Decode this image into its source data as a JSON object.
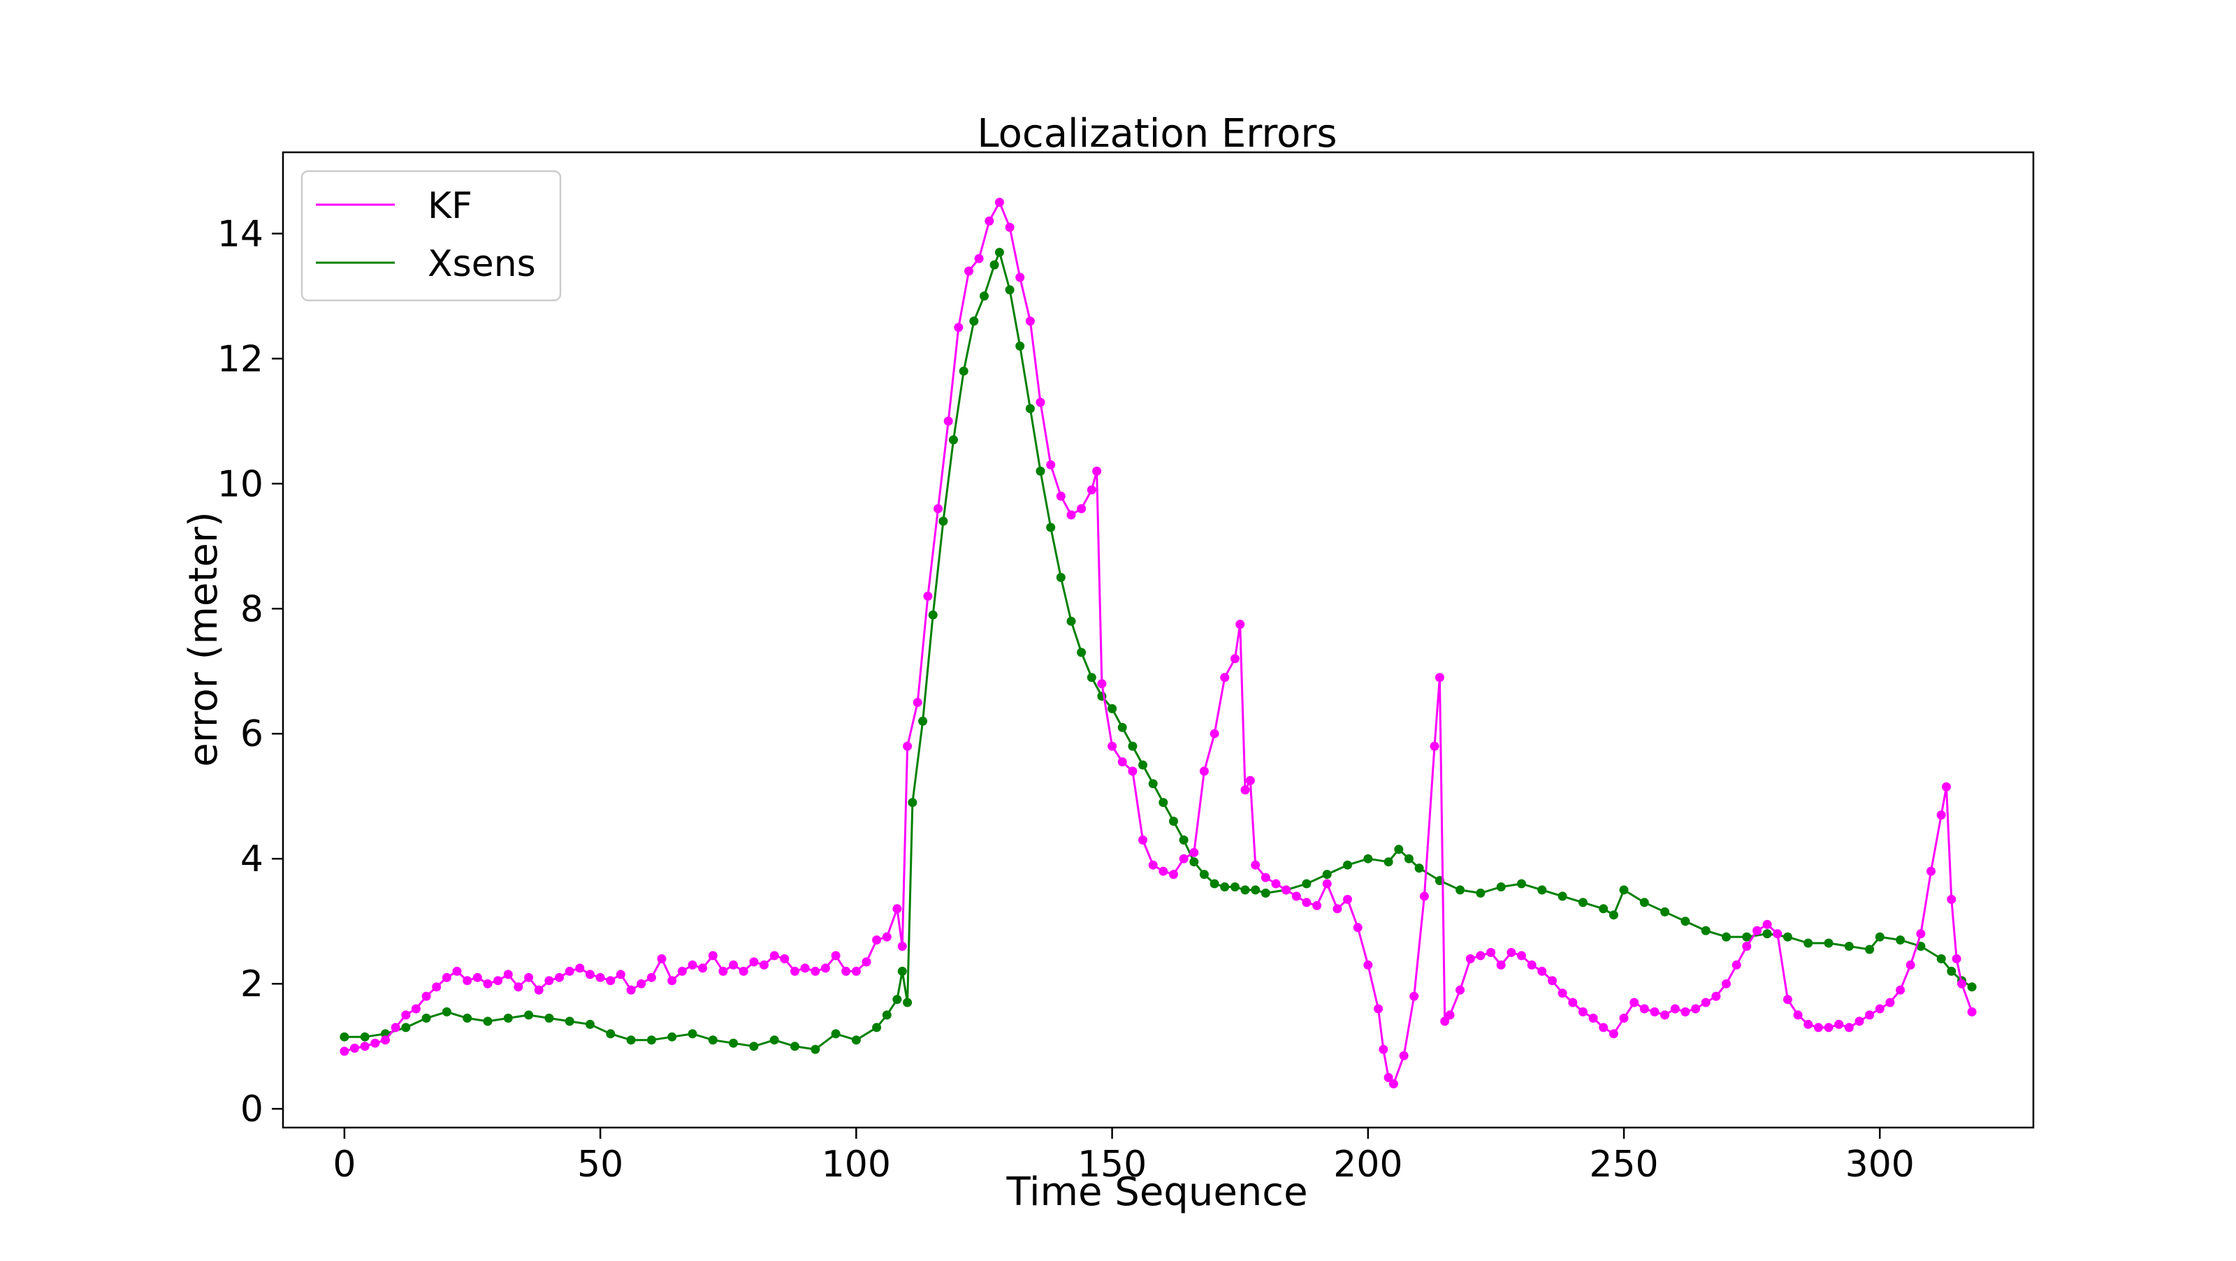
{
  "chart_data": {
    "type": "line",
    "title": "Localization Errors",
    "xlabel": "Time Sequence",
    "ylabel": "error (meter)",
    "xlim": [
      -12,
      330
    ],
    "ylim": [
      -0.3,
      15.3
    ],
    "xticks": [
      0,
      50,
      100,
      150,
      200,
      250,
      300
    ],
    "yticks": [
      0,
      2,
      4,
      6,
      8,
      10,
      12,
      14
    ],
    "grid": false,
    "legend": "top-left",
    "markers": true,
    "series": [
      {
        "name": "KF",
        "color": "#ff00ff",
        "points": [
          [
            0,
            0.92
          ],
          [
            2,
            0.97
          ],
          [
            4,
            1.0
          ],
          [
            6,
            1.05
          ],
          [
            8,
            1.1
          ],
          [
            10,
            1.3
          ],
          [
            12,
            1.5
          ],
          [
            14,
            1.6
          ],
          [
            16,
            1.8
          ],
          [
            18,
            1.95
          ],
          [
            20,
            2.1
          ],
          [
            22,
            2.2
          ],
          [
            24,
            2.05
          ],
          [
            26,
            2.1
          ],
          [
            28,
            2.0
          ],
          [
            30,
            2.05
          ],
          [
            32,
            2.15
          ],
          [
            34,
            1.95
          ],
          [
            36,
            2.1
          ],
          [
            38,
            1.9
          ],
          [
            40,
            2.05
          ],
          [
            42,
            2.1
          ],
          [
            44,
            2.2
          ],
          [
            46,
            2.25
          ],
          [
            48,
            2.15
          ],
          [
            50,
            2.1
          ],
          [
            52,
            2.05
          ],
          [
            54,
            2.15
          ],
          [
            56,
            1.9
          ],
          [
            58,
            2.0
          ],
          [
            60,
            2.1
          ],
          [
            62,
            2.4
          ],
          [
            64,
            2.05
          ],
          [
            66,
            2.2
          ],
          [
            68,
            2.3
          ],
          [
            70,
            2.25
          ],
          [
            72,
            2.45
          ],
          [
            74,
            2.2
          ],
          [
            76,
            2.3
          ],
          [
            78,
            2.2
          ],
          [
            80,
            2.35
          ],
          [
            82,
            2.3
          ],
          [
            84,
            2.45
          ],
          [
            86,
            2.4
          ],
          [
            88,
            2.2
          ],
          [
            90,
            2.25
          ],
          [
            92,
            2.2
          ],
          [
            94,
            2.25
          ],
          [
            96,
            2.45
          ],
          [
            98,
            2.2
          ],
          [
            100,
            2.2
          ],
          [
            102,
            2.35
          ],
          [
            104,
            2.7
          ],
          [
            106,
            2.75
          ],
          [
            108,
            3.2
          ],
          [
            109,
            2.6
          ],
          [
            110,
            5.8
          ],
          [
            112,
            6.5
          ],
          [
            114,
            8.2
          ],
          [
            116,
            9.6
          ],
          [
            118,
            11.0
          ],
          [
            120,
            12.5
          ],
          [
            122,
            13.4
          ],
          [
            124,
            13.6
          ],
          [
            126,
            14.2
          ],
          [
            128,
            14.5
          ],
          [
            130,
            14.1
          ],
          [
            132,
            13.3
          ],
          [
            134,
            12.6
          ],
          [
            136,
            11.3
          ],
          [
            138,
            10.3
          ],
          [
            140,
            9.8
          ],
          [
            142,
            9.5
          ],
          [
            144,
            9.6
          ],
          [
            146,
            9.9
          ],
          [
            147,
            10.2
          ],
          [
            148,
            6.8
          ],
          [
            150,
            5.8
          ],
          [
            152,
            5.55
          ],
          [
            154,
            5.4
          ],
          [
            156,
            4.3
          ],
          [
            158,
            3.9
          ],
          [
            160,
            3.8
          ],
          [
            162,
            3.75
          ],
          [
            164,
            4.0
          ],
          [
            166,
            4.1
          ],
          [
            168,
            5.4
          ],
          [
            170,
            6.0
          ],
          [
            172,
            6.9
          ],
          [
            174,
            7.2
          ],
          [
            175,
            7.75
          ],
          [
            176,
            5.1
          ],
          [
            177,
            5.25
          ],
          [
            178,
            3.9
          ],
          [
            180,
            3.7
          ],
          [
            182,
            3.6
          ],
          [
            184,
            3.5
          ],
          [
            186,
            3.4
          ],
          [
            188,
            3.3
          ],
          [
            190,
            3.25
          ],
          [
            192,
            3.6
          ],
          [
            194,
            3.2
          ],
          [
            196,
            3.35
          ],
          [
            198,
            2.9
          ],
          [
            200,
            2.3
          ],
          [
            202,
            1.6
          ],
          [
            203,
            0.95
          ],
          [
            204,
            0.5
          ],
          [
            205,
            0.4
          ],
          [
            207,
            0.85
          ],
          [
            209,
            1.8
          ],
          [
            211,
            3.4
          ],
          [
            213,
            5.8
          ],
          [
            214,
            6.9
          ],
          [
            215,
            1.4
          ],
          [
            216,
            1.5
          ],
          [
            218,
            1.9
          ],
          [
            220,
            2.4
          ],
          [
            222,
            2.45
          ],
          [
            224,
            2.5
          ],
          [
            226,
            2.3
          ],
          [
            228,
            2.5
          ],
          [
            230,
            2.45
          ],
          [
            232,
            2.3
          ],
          [
            234,
            2.2
          ],
          [
            236,
            2.05
          ],
          [
            238,
            1.85
          ],
          [
            240,
            1.7
          ],
          [
            242,
            1.55
          ],
          [
            244,
            1.45
          ],
          [
            246,
            1.3
          ],
          [
            248,
            1.2
          ],
          [
            250,
            1.45
          ],
          [
            252,
            1.7
          ],
          [
            254,
            1.6
          ],
          [
            256,
            1.55
          ],
          [
            258,
            1.5
          ],
          [
            260,
            1.6
          ],
          [
            262,
            1.55
          ],
          [
            264,
            1.6
          ],
          [
            266,
            1.7
          ],
          [
            268,
            1.8
          ],
          [
            270,
            2.0
          ],
          [
            272,
            2.3
          ],
          [
            274,
            2.6
          ],
          [
            276,
            2.85
          ],
          [
            278,
            2.95
          ],
          [
            280,
            2.8
          ],
          [
            282,
            1.75
          ],
          [
            284,
            1.5
          ],
          [
            286,
            1.35
          ],
          [
            288,
            1.3
          ],
          [
            290,
            1.3
          ],
          [
            292,
            1.35
          ],
          [
            294,
            1.3
          ],
          [
            296,
            1.4
          ],
          [
            298,
            1.5
          ],
          [
            300,
            1.6
          ],
          [
            302,
            1.7
          ],
          [
            304,
            1.9
          ],
          [
            306,
            2.3
          ],
          [
            308,
            2.8
          ],
          [
            310,
            3.8
          ],
          [
            312,
            4.7
          ],
          [
            313,
            5.15
          ],
          [
            314,
            3.35
          ],
          [
            315,
            2.4
          ],
          [
            316,
            2.0
          ],
          [
            318,
            1.55
          ]
        ]
      },
      {
        "name": "Xsens",
        "color": "#008000",
        "points": [
          [
            0,
            1.15
          ],
          [
            4,
            1.15
          ],
          [
            8,
            1.2
          ],
          [
            12,
            1.3
          ],
          [
            16,
            1.45
          ],
          [
            20,
            1.55
          ],
          [
            24,
            1.45
          ],
          [
            28,
            1.4
          ],
          [
            32,
            1.45
          ],
          [
            36,
            1.5
          ],
          [
            40,
            1.45
          ],
          [
            44,
            1.4
          ],
          [
            48,
            1.35
          ],
          [
            52,
            1.2
          ],
          [
            56,
            1.1
          ],
          [
            60,
            1.1
          ],
          [
            64,
            1.15
          ],
          [
            68,
            1.2
          ],
          [
            72,
            1.1
          ],
          [
            76,
            1.05
          ],
          [
            80,
            1.0
          ],
          [
            84,
            1.1
          ],
          [
            88,
            1.0
          ],
          [
            92,
            0.95
          ],
          [
            96,
            1.2
          ],
          [
            100,
            1.1
          ],
          [
            104,
            1.3
          ],
          [
            106,
            1.5
          ],
          [
            108,
            1.75
          ],
          [
            109,
            2.2
          ],
          [
            110,
            1.7
          ],
          [
            111,
            4.9
          ],
          [
            113,
            6.2
          ],
          [
            115,
            7.9
          ],
          [
            117,
            9.4
          ],
          [
            119,
            10.7
          ],
          [
            121,
            11.8
          ],
          [
            123,
            12.6
          ],
          [
            125,
            13.0
          ],
          [
            127,
            13.5
          ],
          [
            128,
            13.7
          ],
          [
            130,
            13.1
          ],
          [
            132,
            12.2
          ],
          [
            134,
            11.2
          ],
          [
            136,
            10.2
          ],
          [
            138,
            9.3
          ],
          [
            140,
            8.5
          ],
          [
            142,
            7.8
          ],
          [
            144,
            7.3
          ],
          [
            146,
            6.9
          ],
          [
            148,
            6.6
          ],
          [
            150,
            6.4
          ],
          [
            152,
            6.1
          ],
          [
            154,
            5.8
          ],
          [
            156,
            5.5
          ],
          [
            158,
            5.2
          ],
          [
            160,
            4.9
          ],
          [
            162,
            4.6
          ],
          [
            164,
            4.3
          ],
          [
            166,
            3.95
          ],
          [
            168,
            3.75
          ],
          [
            170,
            3.6
          ],
          [
            172,
            3.55
          ],
          [
            174,
            3.55
          ],
          [
            176,
            3.5
          ],
          [
            178,
            3.5
          ],
          [
            180,
            3.45
          ],
          [
            184,
            3.5
          ],
          [
            188,
            3.6
          ],
          [
            192,
            3.75
          ],
          [
            196,
            3.9
          ],
          [
            200,
            4.0
          ],
          [
            204,
            3.95
          ],
          [
            206,
            4.15
          ],
          [
            208,
            4.0
          ],
          [
            210,
            3.85
          ],
          [
            214,
            3.65
          ],
          [
            218,
            3.5
          ],
          [
            222,
            3.45
          ],
          [
            226,
            3.55
          ],
          [
            230,
            3.6
          ],
          [
            234,
            3.5
          ],
          [
            238,
            3.4
          ],
          [
            242,
            3.3
          ],
          [
            246,
            3.2
          ],
          [
            248,
            3.1
          ],
          [
            250,
            3.5
          ],
          [
            254,
            3.3
          ],
          [
            258,
            3.15
          ],
          [
            262,
            3.0
          ],
          [
            266,
            2.85
          ],
          [
            270,
            2.75
          ],
          [
            274,
            2.75
          ],
          [
            278,
            2.8
          ],
          [
            282,
            2.75
          ],
          [
            286,
            2.65
          ],
          [
            290,
            2.65
          ],
          [
            294,
            2.6
          ],
          [
            298,
            2.55
          ],
          [
            300,
            2.75
          ],
          [
            304,
            2.7
          ],
          [
            308,
            2.6
          ],
          [
            312,
            2.4
          ],
          [
            314,
            2.2
          ],
          [
            316,
            2.05
          ],
          [
            318,
            1.95
          ]
        ]
      }
    ]
  }
}
